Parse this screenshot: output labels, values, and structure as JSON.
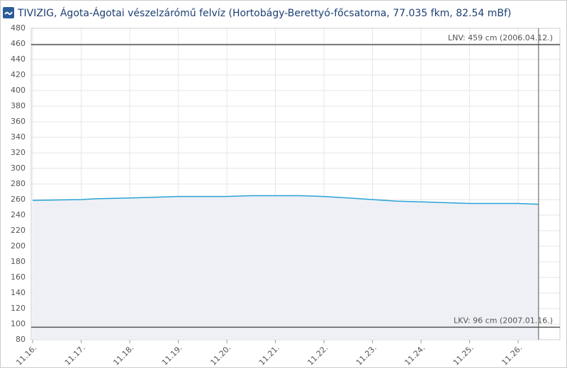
{
  "chart_data": {
    "type": "area",
    "title": "TIVIZIG, Ágota-Ágotai vészelzárómű felvíz (Hortobágy-Berettyó-főcsatorna, 77.035 fkm, 82.54 mBf)",
    "x": [
      0,
      1,
      1.3,
      2,
      2.5,
      3,
      4,
      4.5,
      5,
      5.5,
      6,
      6.5,
      7,
      7.5,
      8,
      8.5,
      9,
      10,
      10.42
    ],
    "values": [
      259,
      260,
      261,
      262,
      263,
      264,
      264,
      265,
      265,
      265,
      264,
      262,
      260,
      258,
      257,
      256,
      255,
      255,
      254
    ],
    "color": "#29a3d6",
    "fill": "#eef0f6",
    "xlim": [
      -0.03,
      10.86
    ],
    "xticks": [
      {
        "value": 0,
        "label": "11.16."
      },
      {
        "value": 1,
        "label": "11.17."
      },
      {
        "value": 2,
        "label": "11.18."
      },
      {
        "value": 3,
        "label": "11.19."
      },
      {
        "value": 4,
        "label": "11.20."
      },
      {
        "value": 5,
        "label": "11.21."
      },
      {
        "value": 6,
        "label": "11.22."
      },
      {
        "value": 7,
        "label": "11.23."
      },
      {
        "value": 8,
        "label": "11.24."
      },
      {
        "value": 9,
        "label": "11.25."
      },
      {
        "value": 10,
        "label": "11.26."
      }
    ],
    "ylim": [
      80,
      480
    ],
    "yticks": [
      80,
      100,
      120,
      140,
      160,
      180,
      200,
      220,
      240,
      260,
      280,
      300,
      320,
      340,
      360,
      380,
      400,
      420,
      440,
      460,
      480
    ],
    "grid": true,
    "reference_lines": [
      {
        "value": 459,
        "label": "LNV: 459 cm (2006.04.12.)"
      },
      {
        "value": 96,
        "label": "LKV: 96 cm (2007.01.16.)"
      }
    ]
  }
}
